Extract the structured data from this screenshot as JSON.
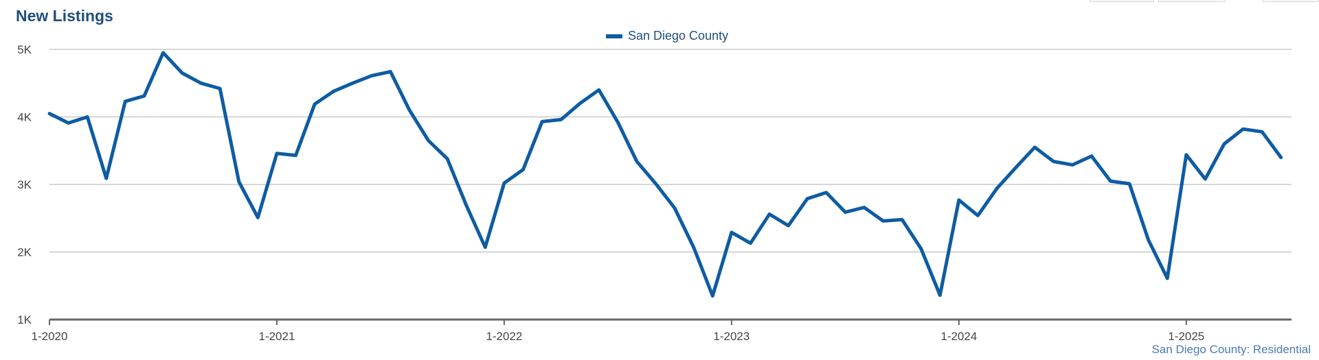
{
  "chart_data": {
    "type": "line",
    "title": "New Listings",
    "xlabel": "",
    "ylabel": "",
    "ylim": [
      1000,
      5000
    ],
    "y_tick_labels": [
      "1K",
      "2K",
      "3K",
      "4K",
      "5K"
    ],
    "y_ticks": [
      1000,
      2000,
      3000,
      4000,
      5000
    ],
    "x_tick_labels": [
      "1-2020",
      "1-2021",
      "1-2022",
      "1-2023",
      "1-2024",
      "1-2025"
    ],
    "x_tick_index": [
      0,
      12,
      24,
      36,
      48,
      60
    ],
    "grid": true,
    "legend_position": "top-center",
    "x": [
      "1-2020",
      "2-2020",
      "3-2020",
      "4-2020",
      "5-2020",
      "6-2020",
      "7-2020",
      "8-2020",
      "9-2020",
      "10-2020",
      "11-2020",
      "12-2020",
      "1-2021",
      "2-2021",
      "3-2021",
      "4-2021",
      "5-2021",
      "6-2021",
      "7-2021",
      "8-2021",
      "9-2021",
      "10-2021",
      "11-2021",
      "12-2021",
      "1-2022",
      "2-2022",
      "3-2022",
      "4-2022",
      "5-2022",
      "6-2022",
      "7-2022",
      "8-2022",
      "9-2022",
      "10-2022",
      "11-2022",
      "12-2022",
      "1-2023",
      "2-2023",
      "3-2023",
      "4-2023",
      "5-2023",
      "6-2023",
      "7-2023",
      "8-2023",
      "9-2023",
      "10-2023",
      "11-2023",
      "12-2023",
      "1-2024",
      "2-2024",
      "3-2024",
      "4-2024",
      "5-2024",
      "6-2024",
      "7-2024",
      "8-2024",
      "9-2024",
      "10-2024",
      "11-2024",
      "12-2024",
      "1-2025",
      "2-2025",
      "3-2025",
      "4-2025",
      "5-2025",
      "6-2025"
    ],
    "series": [
      {
        "name": "San Diego County",
        "color": "#0e5ca3",
        "values": [
          4050,
          3910,
          4000,
          3090,
          4230,
          4310,
          4950,
          4650,
          4500,
          4420,
          3040,
          2510,
          3460,
          3430,
          4190,
          4380,
          4500,
          4610,
          4670,
          4100,
          3650,
          3380,
          2690,
          2070,
          3020,
          3220,
          3930,
          3960,
          4200,
          4400,
          3920,
          3340,
          3010,
          2650,
          2070,
          1350,
          2290,
          2130,
          2560,
          2390,
          2790,
          2880,
          2590,
          2660,
          2460,
          2480,
          2050,
          1360,
          2770,
          2540,
          2940,
          3250,
          3550,
          3340,
          3290,
          3420,
          3050,
          3010,
          2180,
          1610,
          3440,
          3080,
          3600,
          3820,
          3780,
          3400
        ]
      }
    ]
  },
  "footer": {
    "source_note": "San Diego County: Residential"
  }
}
